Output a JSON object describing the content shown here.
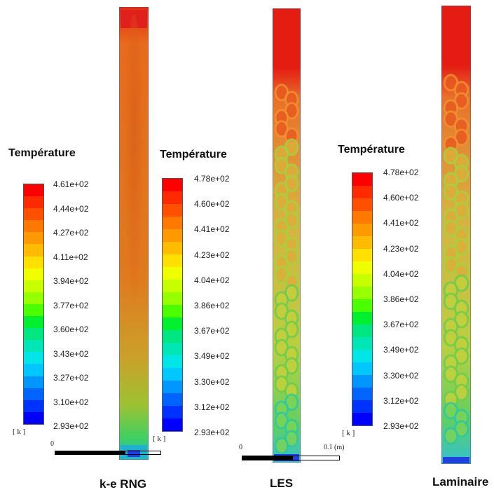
{
  "palette": [
    "#ff0000",
    "#ff2a00",
    "#ff5000",
    "#ff7800",
    "#ff9900",
    "#ffbb00",
    "#ffe000",
    "#f0ff00",
    "#c8ff00",
    "#96ff00",
    "#4cff00",
    "#00f030",
    "#00e680",
    "#00e6b4",
    "#00e6e6",
    "#00c8ff",
    "#0096ff",
    "#0064ff",
    "#0032ff",
    "#0000ff"
  ],
  "panels": [
    {
      "id": "ke",
      "legend_title": "Température",
      "unit": "[ k ]",
      "ticks": [
        "4.61e+02",
        "4.44e+02",
        "4.27e+02",
        "4.11e+02",
        "3.94e+02",
        "3.77e+02",
        "3.60e+02",
        "3.43e+02",
        "3.27e+02",
        "3.10e+02",
        "2.93e+02"
      ],
      "caption": "k-e RNG",
      "scale_start": "0"
    },
    {
      "id": "les",
      "legend_title": "Température",
      "unit": "[ k ]",
      "ticks": [
        "4.78e+02",
        "4.60e+02",
        "4.41e+02",
        "4.23e+02",
        "4.04e+02",
        "3.86e+02",
        "3.67e+02",
        "3.49e+02",
        "3.30e+02",
        "3.12e+02",
        "2.93e+02"
      ],
      "caption": "LES",
      "scale_start": "0",
      "scale_end": "0.1 (m)"
    },
    {
      "id": "laminaire",
      "legend_title": "Température",
      "unit": "[ k ]",
      "ticks": [
        "4.78e+02",
        "4.60e+02",
        "4.41e+02",
        "4.23e+02",
        "4.04e+02",
        "3.86e+02",
        "3.67e+02",
        "3.49e+02",
        "3.30e+02",
        "3.12e+02",
        "2.93e+02"
      ],
      "caption": "Laminaire"
    }
  ]
}
